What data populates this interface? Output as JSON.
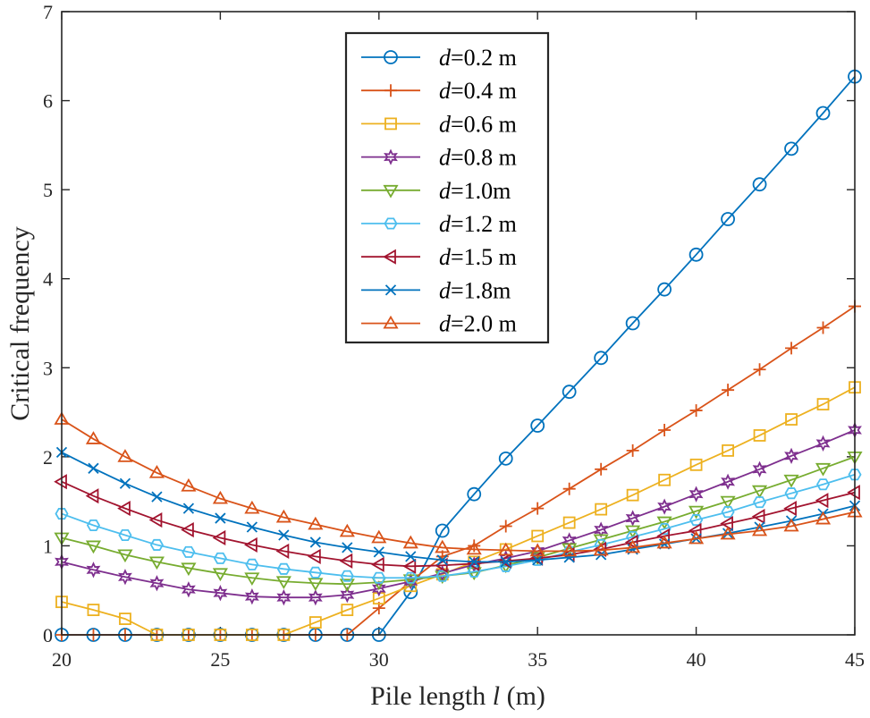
{
  "chart_data": {
    "type": "line",
    "xlabel_prefix": "Pile length ",
    "xlabel_var": "l",
    "xlabel_unit": " (m)",
    "ylabel": "Critical frequency",
    "xlim": [
      20,
      45
    ],
    "ylim": [
      0,
      7
    ],
    "xticks": [
      20,
      25,
      30,
      35,
      40,
      45
    ],
    "yticks": [
      0,
      1,
      2,
      3,
      4,
      5,
      6,
      7
    ],
    "legend_position": "top-center",
    "x": [
      20,
      21,
      22,
      23,
      24,
      25,
      26,
      27,
      28,
      29,
      30,
      31,
      32,
      33,
      34,
      35,
      36,
      37,
      38,
      39,
      40,
      41,
      42,
      43,
      44,
      45
    ],
    "series": [
      {
        "var": "d",
        "label": "=0.2 m",
        "marker": "circle",
        "color": "#0072BD",
        "values": [
          0,
          0,
          0,
          0,
          0,
          0,
          0,
          0,
          0,
          0,
          0,
          0.48,
          1.17,
          1.58,
          1.98,
          2.35,
          2.73,
          3.11,
          3.5,
          3.88,
          4.27,
          4.67,
          5.06,
          5.46,
          5.86,
          6.27
        ]
      },
      {
        "var": "d",
        "label": "=0.4 m",
        "marker": "plus",
        "color": "#D95319",
        "values": [
          0,
          0,
          0,
          0,
          0,
          0,
          0,
          0,
          0,
          0,
          0.3,
          0.6,
          0.88,
          1.0,
          1.22,
          1.42,
          1.64,
          1.86,
          2.07,
          2.3,
          2.52,
          2.75,
          2.98,
          3.22,
          3.45,
          3.69
        ]
      },
      {
        "var": "d",
        "label": "=0.6 m",
        "marker": "square",
        "color": "#EDB120",
        "values": [
          0.37,
          0.28,
          0.18,
          0,
          0,
          0,
          0,
          0,
          0.14,
          0.28,
          0.41,
          0.55,
          0.68,
          0.82,
          0.96,
          1.11,
          1.26,
          1.41,
          1.57,
          1.74,
          1.91,
          2.07,
          2.24,
          2.42,
          2.59,
          2.78
        ]
      },
      {
        "var": "d",
        "label": "=0.8 m",
        "marker": "hexagram",
        "color": "#7E2F8E",
        "values": [
          0.82,
          0.73,
          0.65,
          0.58,
          0.51,
          0.47,
          0.43,
          0.42,
          0.42,
          0.45,
          0.52,
          0.6,
          0.69,
          0.79,
          0.86,
          0.94,
          1.06,
          1.18,
          1.31,
          1.44,
          1.58,
          1.72,
          1.86,
          2.01,
          2.15,
          2.3
        ]
      },
      {
        "var": "d",
        "label": "=1.0m",
        "marker": "triangle-down",
        "color": "#77AC30",
        "values": [
          1.09,
          1.0,
          0.9,
          0.82,
          0.75,
          0.69,
          0.64,
          0.6,
          0.58,
          0.57,
          0.59,
          0.62,
          0.66,
          0.7,
          0.78,
          0.87,
          0.97,
          1.07,
          1.17,
          1.27,
          1.39,
          1.5,
          1.62,
          1.74,
          1.87,
          2.0
        ]
      },
      {
        "var": "d",
        "label": "=1.2 m",
        "marker": "hexagon",
        "color": "#4DBEEE",
        "values": [
          1.36,
          1.23,
          1.12,
          1.01,
          0.93,
          0.86,
          0.79,
          0.74,
          0.7,
          0.66,
          0.64,
          0.64,
          0.66,
          0.71,
          0.77,
          0.84,
          0.93,
          1.01,
          1.1,
          1.19,
          1.29,
          1.38,
          1.49,
          1.59,
          1.69,
          1.8
        ]
      },
      {
        "var": "d",
        "label": "=1.5 m",
        "marker": "triangle-left",
        "color": "#A2142F",
        "values": [
          1.72,
          1.56,
          1.42,
          1.29,
          1.18,
          1.09,
          1.01,
          0.94,
          0.88,
          0.83,
          0.79,
          0.77,
          0.78,
          0.8,
          0.83,
          0.86,
          0.9,
          0.96,
          1.04,
          1.11,
          1.17,
          1.25,
          1.33,
          1.42,
          1.51,
          1.6
        ]
      },
      {
        "var": "d",
        "label": "=1.8m",
        "marker": "x",
        "color": "#0072BD",
        "values": [
          2.05,
          1.87,
          1.7,
          1.55,
          1.42,
          1.31,
          1.21,
          1.12,
          1.04,
          0.98,
          0.93,
          0.88,
          0.84,
          0.82,
          0.82,
          0.84,
          0.87,
          0.9,
          0.96,
          1.02,
          1.08,
          1.14,
          1.21,
          1.28,
          1.36,
          1.45
        ]
      },
      {
        "var": "d",
        "label": "=2.0 m",
        "marker": "triangle-up",
        "color": "#D95319",
        "values": [
          2.42,
          2.2,
          2.0,
          1.82,
          1.67,
          1.53,
          1.42,
          1.32,
          1.24,
          1.16,
          1.09,
          1.03,
          0.98,
          0.96,
          0.95,
          0.94,
          0.94,
          0.95,
          0.98,
          1.03,
          1.08,
          1.13,
          1.17,
          1.22,
          1.3,
          1.38
        ]
      }
    ]
  }
}
